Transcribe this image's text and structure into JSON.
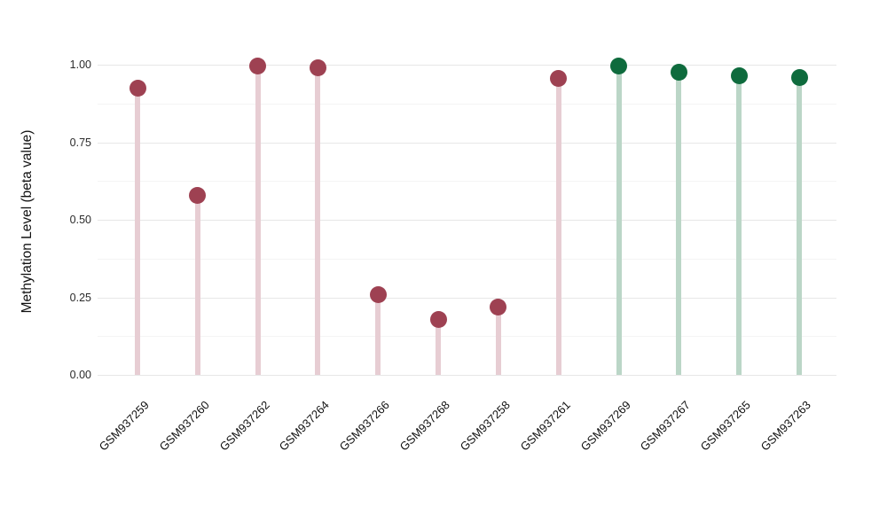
{
  "chart_data": {
    "type": "lollipop",
    "title": "",
    "xlabel": "",
    "ylabel": "Methylation Level (beta value)",
    "ylim": [
      0,
      1
    ],
    "grid": true,
    "legend_position": "none",
    "yticks": [
      {
        "value": 0.0,
        "label": "0.00"
      },
      {
        "value": 0.25,
        "label": "0.25"
      },
      {
        "value": 0.5,
        "label": "0.50"
      },
      {
        "value": 0.75,
        "label": "0.75"
      },
      {
        "value": 1.0,
        "label": "1.00"
      }
    ],
    "minor_gridlines": [
      0.125,
      0.375,
      0.625,
      0.875
    ],
    "categories": [
      "GSM937259",
      "GSM937260",
      "GSM937262",
      "GSM937264",
      "GSM937266",
      "GSM937268",
      "GSM937258",
      "GSM937261",
      "GSM937269",
      "GSM937267",
      "GSM937265",
      "GSM937263"
    ],
    "points": [
      {
        "label": "GSM937259",
        "value": 0.925,
        "group": "red"
      },
      {
        "label": "GSM937260",
        "value": 0.58,
        "group": "red"
      },
      {
        "label": "GSM937262",
        "value": 0.995,
        "group": "red"
      },
      {
        "label": "GSM937264",
        "value": 0.99,
        "group": "red"
      },
      {
        "label": "GSM937266",
        "value": 0.26,
        "group": "red"
      },
      {
        "label": "GSM937268",
        "value": 0.18,
        "group": "red"
      },
      {
        "label": "GSM937258",
        "value": 0.22,
        "group": "red"
      },
      {
        "label": "GSM937261",
        "value": 0.955,
        "group": "red"
      },
      {
        "label": "GSM937269",
        "value": 0.995,
        "group": "green"
      },
      {
        "label": "GSM937267",
        "value": 0.975,
        "group": "green"
      },
      {
        "label": "GSM937265",
        "value": 0.965,
        "group": "green"
      },
      {
        "label": "GSM937263",
        "value": 0.96,
        "group": "green"
      }
    ],
    "colors": {
      "red_dot": "#9e4152",
      "red_stem": "#e7cdd3",
      "green_dot": "#0e6b3d",
      "green_stem": "#bbd6c7",
      "grid_major": "#e7e7e7",
      "grid_minor": "#f4f4f4",
      "background": "#ffffff",
      "text": "#111111"
    }
  }
}
